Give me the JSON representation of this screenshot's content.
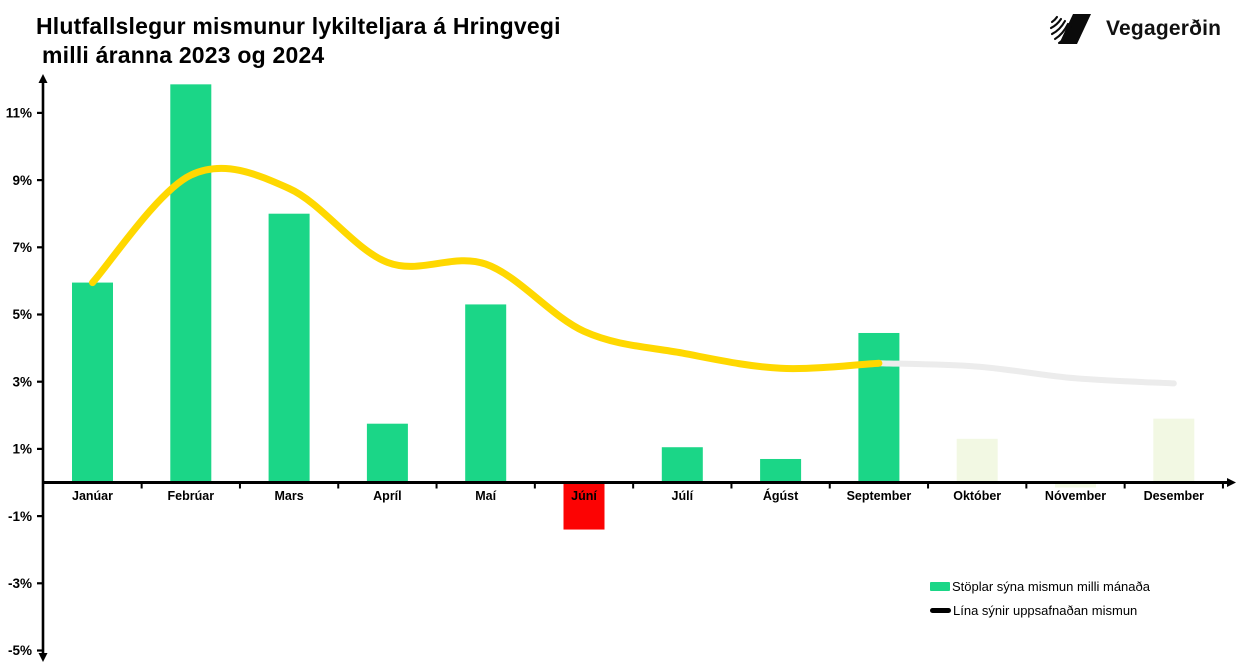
{
  "header": {
    "title_line1": "Hlutfallslegur mismunur lykilteljara á Hringvegi",
    "title_line2": "milli áranna 2023 og 2024",
    "logo_text": "Vegagerðin"
  },
  "legend": {
    "bars_label": "Stöplar sýna mismun milli mánaða",
    "line_label": "Lína sýnir uppsafnaðan mismun"
  },
  "chart_data": {
    "type": "bar",
    "title": "Hlutfallslegur mismunur lykilteljara á Hringvegi milli áranna 2023 og 2024",
    "categories": [
      "Janúar",
      "Febrúar",
      "Mars",
      "Apríl",
      "Maí",
      "Júní",
      "Júlí",
      "Ágúst",
      "September",
      "Október",
      "Nóvember",
      "Desember"
    ],
    "series": [
      {
        "name": "Stöplar sýna mismun milli mánaða",
        "type": "bar",
        "values": [
          5.95,
          11.85,
          8.0,
          1.75,
          5.3,
          -1.4,
          1.05,
          0.7,
          4.45,
          1.3,
          -0.15,
          1.9
        ],
        "styles": [
          "actual",
          "actual",
          "actual",
          "actual",
          "actual",
          "negative",
          "actual",
          "actual",
          "actual",
          "faded",
          "faded",
          "faded"
        ]
      },
      {
        "name": "Lína sýnir uppsafnaðan mismun",
        "type": "line",
        "values": [
          5.95,
          9.15,
          8.75,
          6.55,
          6.5,
          4.5,
          3.85,
          3.4,
          3.55,
          3.45,
          3.1,
          2.95
        ],
        "solid_until_index": 8
      }
    ],
    "y_ticks": [
      "11%",
      "9%",
      "7%",
      "5%",
      "3%",
      "1%",
      "-1%",
      "-3%",
      "-5%"
    ],
    "y_tick_values": [
      11,
      9,
      7,
      5,
      3,
      1,
      -1,
      -3,
      -5
    ],
    "ylim": [
      -5.5,
      12.3
    ],
    "grid": false,
    "legend_position": "bottom-right",
    "colors": {
      "bar_positive": "#1BD687",
      "bar_negative": "#FC0303",
      "bar_faded": "#F2F8E3",
      "line_actual": "#FFD800",
      "line_projected": "#ECECEC",
      "axis": "#000000",
      "label": "#000000"
    }
  }
}
